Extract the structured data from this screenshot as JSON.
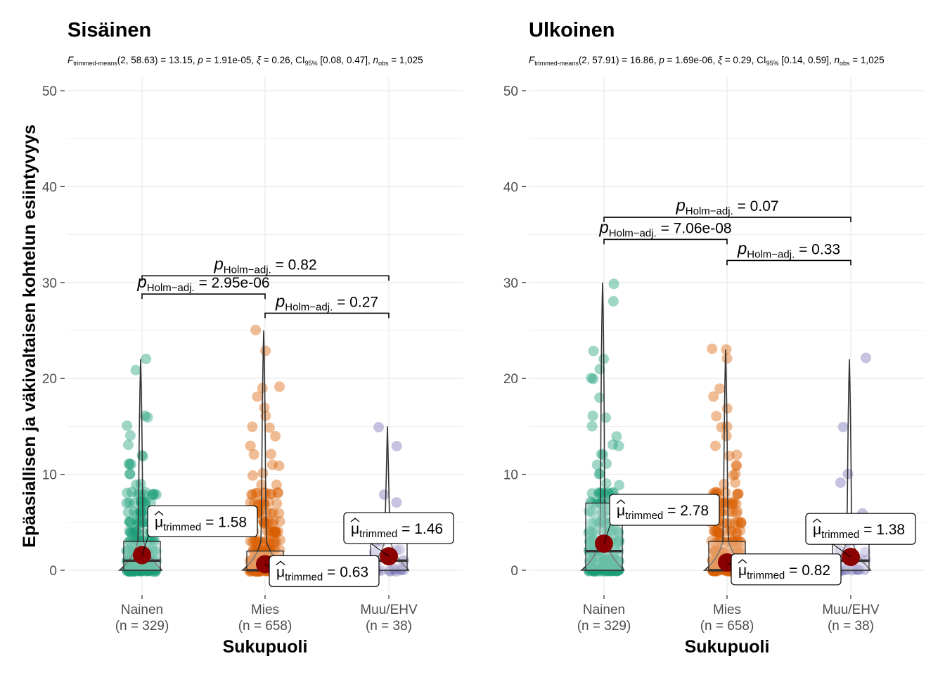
{
  "chart_data": [
    {
      "type": "scatter",
      "title": "Sisäinen",
      "subtitle": {
        "stat": "F",
        "stat_sub": "trimmed-means",
        "stat_args": "(2, 58.63) = 13.15, ",
        "p": "p",
        "p_val": " = 1.91e-05, ",
        "es": "ξ",
        "es_val": " = 0.26, CI",
        "ci_sub": "95%",
        "ci_val": " [0.08, 0.47], ",
        "n": "n",
        "n_sub": "obs",
        "n_val": " = 1,025"
      },
      "xlabel": "Sukupuoli",
      "ylabel": "Epäasiallisen ja väkivaltaisen kohtelun esiintyvyys",
      "ylim": [
        0,
        50
      ],
      "yticks": [
        "0",
        "10",
        "20",
        "30",
        "40",
        "50"
      ],
      "categories": [
        "Nainen",
        "Mies",
        "Muu/EHV"
      ],
      "category_n": [
        "(n = 329)",
        "(n = 658)",
        "(n = 38)"
      ],
      "series": [
        {
          "name": "Nainen",
          "color": "#1b9e77",
          "n": 329,
          "box": [
            0,
            0,
            1,
            3,
            22
          ],
          "max": 22,
          "trimmed_mean": 1.58,
          "extra_points": [
            22,
            21,
            16,
            16,
            15,
            14,
            13,
            12,
            12,
            11,
            11,
            11,
            10,
            10,
            9,
            9,
            8,
            8,
            7,
            7,
            6,
            6,
            5,
            5,
            4,
            4,
            3,
            3,
            2,
            2,
            1,
            1,
            0,
            0,
            0
          ]
        },
        {
          "name": "Mies",
          "color": "#d95f02",
          "n": 658,
          "box": [
            0,
            0,
            0,
            2,
            25
          ],
          "max": 25,
          "trimmed_mean": 0.63,
          "extra_points": [
            25,
            23,
            19,
            19,
            18,
            17,
            16,
            15,
            15,
            14,
            13,
            12,
            12,
            11,
            11,
            10,
            10,
            9,
            9,
            8,
            8,
            7,
            7,
            6,
            6,
            5,
            5,
            4,
            4,
            3,
            3,
            2,
            2,
            1,
            1,
            0,
            0
          ]
        },
        {
          "name": "Muu/EHV",
          "color": "#7570b3",
          "n": 38,
          "box": [
            0,
            0,
            1,
            4,
            15
          ],
          "max": 15,
          "trimmed_mean": 1.46,
          "extra_points": [
            15,
            13,
            8,
            7,
            5,
            4,
            3,
            2,
            1,
            0,
            0
          ]
        }
      ],
      "comparisons": [
        {
          "from": 0,
          "to": 1,
          "y": 28.8,
          "label_p": "p",
          "label_sub": "Holm−adj.",
          "label_val": " = 2.95e-06"
        },
        {
          "from": 1,
          "to": 2,
          "y": 26.8,
          "label_p": "p",
          "label_sub": "Holm−adj.",
          "label_val": " = 0.27"
        },
        {
          "from": 0,
          "to": 2,
          "y": 30.7,
          "label_p": "p",
          "label_sub": "Holm−adj.",
          "label_val": " = 0.82"
        }
      ],
      "mean_labels": [
        {
          "mu": "μ",
          "sub": "trimmed",
          "val": " = 1.58"
        },
        {
          "mu": "μ",
          "sub": "trimmed",
          "val": " = 0.63"
        },
        {
          "mu": "μ",
          "sub": "trimmed",
          "val": " = 1.46"
        }
      ]
    },
    {
      "type": "scatter",
      "title": "Ulkoinen",
      "subtitle": {
        "stat": "F",
        "stat_sub": "trimmed-means",
        "stat_args": "(2, 57.91) = 16.86, ",
        "p": "p",
        "p_val": " = 1.69e-06, ",
        "es": "ξ",
        "es_val": " = 0.29, CI",
        "ci_sub": "95%",
        "ci_val": " [0.14, 0.59], ",
        "n": "n",
        "n_sub": "obs",
        "n_val": " = 1,025"
      },
      "xlabel": "Sukupuoli",
      "ylabel": "",
      "ylim": [
        0,
        50
      ],
      "yticks": [
        "0",
        "10",
        "20",
        "30",
        "40",
        "50"
      ],
      "categories": [
        "Nainen",
        "Mies",
        "Muu/EHV"
      ],
      "category_n": [
        "(n = 329)",
        "(n = 658)",
        "(n = 38)"
      ],
      "series": [
        {
          "name": "Nainen",
          "color": "#1b9e77",
          "n": 329,
          "box": [
            0,
            0,
            2,
            7,
            30
          ],
          "max": 30,
          "trimmed_mean": 2.78,
          "extra_points": [
            30,
            28,
            23,
            22,
            21,
            20,
            20,
            18,
            16,
            16,
            15,
            14,
            13,
            13,
            12,
            12,
            11,
            11,
            10,
            10,
            9,
            9,
            8,
            8,
            7,
            7,
            6,
            6,
            5,
            5,
            4,
            4,
            3,
            3,
            2,
            2,
            1,
            1,
            0,
            0
          ]
        },
        {
          "name": "Mies",
          "color": "#d95f02",
          "n": 658,
          "box": [
            0,
            0,
            0,
            3,
            23
          ],
          "max": 23,
          "trimmed_mean": 0.82,
          "extra_points": [
            23,
            23,
            22,
            19,
            18,
            17,
            16,
            15,
            15,
            14,
            13,
            12,
            12,
            11,
            11,
            10,
            10,
            9,
            9,
            8,
            8,
            7,
            7,
            6,
            6,
            5,
            5,
            4,
            4,
            3,
            3,
            2,
            2,
            1,
            1,
            0,
            0
          ]
        },
        {
          "name": "Muu/EHV",
          "color": "#7570b3",
          "n": 38,
          "box": [
            0,
            0,
            1,
            4,
            22
          ],
          "max": 22,
          "trimmed_mean": 1.38,
          "extra_points": [
            22,
            15,
            10,
            9,
            6,
            5,
            4,
            3,
            2,
            1,
            0,
            0
          ]
        }
      ],
      "comparisons": [
        {
          "from": 0,
          "to": 1,
          "y": 34.5,
          "label_p": "p",
          "label_sub": "Holm−adj.",
          "label_val": " = 7.06e-08"
        },
        {
          "from": 1,
          "to": 2,
          "y": 32.3,
          "label_p": "p",
          "label_sub": "Holm−adj.",
          "label_val": " = 0.33"
        },
        {
          "from": 0,
          "to": 2,
          "y": 36.8,
          "label_p": "p",
          "label_sub": "Holm−adj.",
          "label_val": " = 0.07"
        }
      ],
      "mean_labels": [
        {
          "mu": "μ",
          "sub": "trimmed",
          "val": " = 2.78"
        },
        {
          "mu": "μ",
          "sub": "trimmed",
          "val": " = 0.82"
        },
        {
          "mu": "μ",
          "sub": "trimmed",
          "val": " = 1.38"
        }
      ]
    }
  ],
  "colors": {
    "grid": "#ebebeb",
    "mean_point": "#8b0000",
    "violin_line": "#333333"
  }
}
